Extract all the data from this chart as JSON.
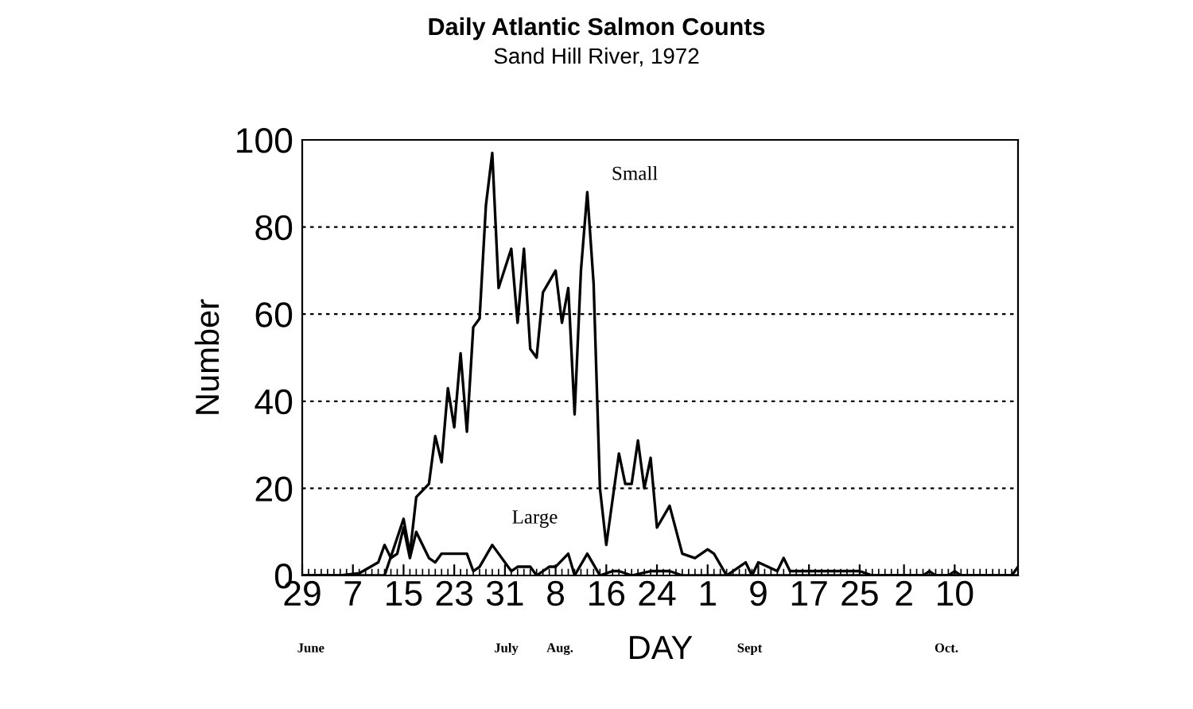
{
  "chart_data": {
    "type": "line",
    "title": "Daily Atlantic Salmon Counts",
    "subtitle": "Sand Hill River, 1972",
    "xlabel": "DAY",
    "ylabel": "Number",
    "series": [
      {
        "name": "Small",
        "color": "#000000",
        "x": [
          "1972-06-29",
          "1972-07-05",
          "1972-07-09",
          "1972-07-12",
          "1972-07-15",
          "1972-07-16",
          "1972-07-17",
          "1972-07-19",
          "1972-07-20",
          "1972-07-21",
          "1972-07-22",
          "1972-07-23",
          "1972-07-24",
          "1972-07-25",
          "1972-07-26",
          "1972-07-27",
          "1972-07-28",
          "1972-07-29",
          "1972-07-30",
          "1972-08-01",
          "1972-08-02",
          "1972-08-03",
          "1972-08-04",
          "1972-08-05",
          "1972-08-06",
          "1972-08-08",
          "1972-08-09",
          "1972-08-10",
          "1972-08-11",
          "1972-08-12",
          "1972-08-13",
          "1972-08-14",
          "1972-08-15",
          "1972-08-16",
          "1972-08-18",
          "1972-08-19",
          "1972-08-20",
          "1972-08-21",
          "1972-08-22",
          "1972-08-23",
          "1972-08-24",
          "1972-08-26",
          "1972-08-28",
          "1972-08-30",
          "1972-09-01",
          "1972-09-02",
          "1972-09-04",
          "1972-09-05",
          "1972-09-07",
          "1972-09-08",
          "1972-09-09",
          "1972-09-12",
          "1972-09-13",
          "1972-09-14",
          "1972-09-17",
          "1972-09-25",
          "1972-09-27",
          "1972-10-05",
          "1972-10-06",
          "1972-10-07",
          "1972-10-09",
          "1972-10-10",
          "1972-10-11",
          "1972-10-19",
          "1972-10-20"
        ],
        "values": [
          0,
          0,
          0,
          0,
          13,
          5,
          18,
          21,
          32,
          26,
          43,
          34,
          51,
          33,
          57,
          59,
          85,
          97,
          66,
          75,
          58,
          75,
          52,
          50,
          65,
          70,
          58,
          66,
          37,
          70,
          88,
          67,
          20,
          7,
          28,
          21,
          21,
          31,
          20,
          27,
          11,
          16,
          5,
          4,
          6,
          5,
          0,
          1,
          3,
          0,
          3,
          1,
          4,
          1,
          1,
          1,
          0,
          0,
          1,
          0,
          0,
          1,
          0,
          0,
          2
        ]
      },
      {
        "name": "Large",
        "color": "#000000",
        "x": [
          "1972-06-29",
          "1972-07-05",
          "1972-07-08",
          "1972-07-11",
          "1972-07-12",
          "1972-07-13",
          "1972-07-14",
          "1972-07-15",
          "1972-07-16",
          "1972-07-17",
          "1972-07-19",
          "1972-07-20",
          "1972-07-21",
          "1972-07-25",
          "1972-07-26",
          "1972-07-27",
          "1972-07-29",
          "1972-08-01",
          "1972-08-02",
          "1972-08-04",
          "1972-08-05",
          "1972-08-07",
          "1972-08-08",
          "1972-08-10",
          "1972-08-11",
          "1972-08-13",
          "1972-08-15",
          "1972-08-17",
          "1972-08-18",
          "1972-08-20",
          "1972-08-23",
          "1972-08-26",
          "1972-08-28",
          "1972-09-01",
          "1972-09-17",
          "1972-10-20"
        ],
        "values": [
          0,
          0,
          0.5,
          3,
          7,
          4,
          5,
          11,
          4,
          10,
          4,
          3,
          5,
          5,
          1,
          2,
          7,
          1,
          2,
          2,
          0,
          2,
          2,
          5,
          0,
          5,
          0,
          1,
          1,
          0,
          1,
          1,
          0,
          0,
          0,
          0
        ]
      }
    ],
    "xlim": [
      "1972-06-29",
      "1972-10-20"
    ],
    "xticks": [
      {
        "value": "1972-06-29",
        "label": "29"
      },
      {
        "value": "1972-07-07",
        "label": "7"
      },
      {
        "value": "1972-07-15",
        "label": "15"
      },
      {
        "value": "1972-07-23",
        "label": "23"
      },
      {
        "value": "1972-07-31",
        "label": "31"
      },
      {
        "value": "1972-08-08",
        "label": "8"
      },
      {
        "value": "1972-08-16",
        "label": "16"
      },
      {
        "value": "1972-08-24",
        "label": "24"
      },
      {
        "value": "1972-09-01",
        "label": "1"
      },
      {
        "value": "1972-09-09",
        "label": "9"
      },
      {
        "value": "1972-09-17",
        "label": "17"
      },
      {
        "value": "1972-09-25",
        "label": "25"
      },
      {
        "value": "1972-10-02",
        "label": "2"
      },
      {
        "value": "1972-10-10",
        "label": "10"
      }
    ],
    "ylim": [
      0,
      100
    ],
    "yticks": [
      0,
      20,
      40,
      60,
      80,
      100
    ],
    "annotations": [
      "June",
      "July",
      "Aug.",
      "Sept",
      "Oct."
    ],
    "grid": "y",
    "legend": false,
    "marker": "none",
    "line_style": "solid"
  }
}
